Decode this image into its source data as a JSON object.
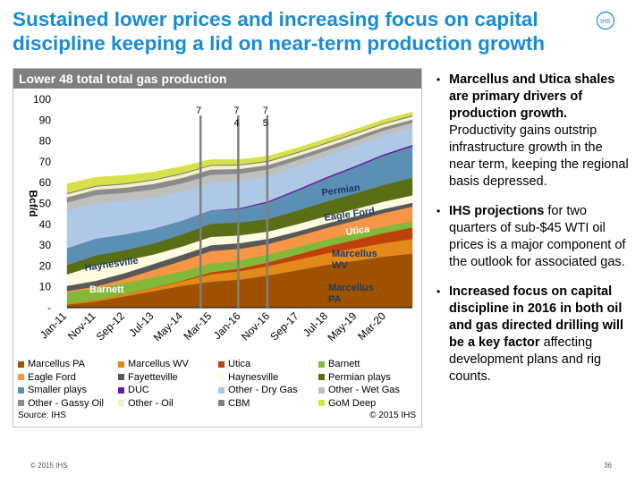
{
  "slide": {
    "title": "Sustained lower prices and increasing focus on capital discipline keeping a lid on near-term production growth",
    "logo_text": "IHS",
    "footer_copyright": "© 2015 IHS",
    "page_number": "36"
  },
  "bullets": [
    {
      "bold": "Marcellus and Utica shales are primary drivers of production growth.",
      "text": " Productivity gains outstrip infrastructure growth in the near term, keeping the regional basis depressed."
    },
    {
      "bold": "IHS projections",
      "text": " for two quarters of sub-$45 WTI oil prices is a major component of the outlook for associated gas."
    },
    {
      "bold": "Increased focus on capital discipline in 2016 in both oil and gas directed drilling will be a key factor",
      "text": " affecting development plans and rig counts."
    }
  ],
  "chart_data": {
    "type": "area",
    "stacked": true,
    "title": "Lower 48 total total gas production",
    "ylabel": "Bcf/d",
    "ylim": [
      0,
      100
    ],
    "yticks": [
      "-",
      "10",
      "20",
      "30",
      "40",
      "50",
      "60",
      "70",
      "80",
      "90",
      "100"
    ],
    "x_labels": [
      "Jan-11",
      "Nov-11",
      "Sep-12",
      "Jul-13",
      "May-14",
      "Mar-15",
      "Jan-16",
      "Nov-16",
      "Sep-17",
      "Jul-18",
      "May-19",
      "Mar-20"
    ],
    "x": [
      "Jan-11",
      "Nov-11",
      "Sep-12",
      "Jul-13",
      "May-14",
      "Mar-15",
      "Jan-16",
      "Nov-16",
      "Sep-17",
      "Jul-18",
      "May-19",
      "Mar-20",
      "Dec-20"
    ],
    "series": [
      {
        "name": "Marcellus PA",
        "color": "#9e5200",
        "values": [
          1.5,
          3,
          5.5,
          8,
          10.5,
          12.5,
          13.5,
          15.5,
          18,
          20.5,
          22.5,
          24.5,
          26
        ]
      },
      {
        "name": "Marcellus WV",
        "color": "#e2891a",
        "values": [
          0.5,
          0.7,
          1,
          1.5,
          2.2,
          3.5,
          4,
          4.5,
          5,
          5.5,
          6,
          6.5,
          7
        ]
      },
      {
        "name": "Utica",
        "color": "#c0400c",
        "values": [
          0,
          0,
          0,
          0.1,
          0.3,
          1,
          1.3,
          1.8,
          2.5,
          3.3,
          4,
          4.8,
          5.5
        ]
      },
      {
        "name": "Barnett",
        "color": "#83b838",
        "values": [
          5.5,
          5.5,
          5.3,
          5,
          4.5,
          4.2,
          4,
          3.8,
          3.6,
          3.4,
          3.2,
          3.1,
          3
        ]
      },
      {
        "name": "Eagle Ford",
        "color": "#f79646",
        "values": [
          0.5,
          1,
          2,
          3.5,
          5,
          6,
          5.5,
          5,
          5.2,
          5.5,
          6,
          6.5,
          7
        ]
      },
      {
        "name": "Fayetteville",
        "color": "#595959",
        "values": [
          2.5,
          2.7,
          2.8,
          2.9,
          2.9,
          2.8,
          2.7,
          2.5,
          2.3,
          2.2,
          2.1,
          2,
          1.9
        ]
      },
      {
        "name": "Haynesville",
        "color": "#fffbe0",
        "values": [
          5.5,
          7.5,
          6,
          4.5,
          4,
          4,
          3.7,
          3.5,
          3.5,
          3.5,
          3.5,
          3.5,
          3.5
        ]
      },
      {
        "name": "Permian plays",
        "color": "#5a6e15",
        "values": [
          4.5,
          4.7,
          5,
          5.3,
          5.8,
          6.3,
          6.2,
          6,
          6.5,
          7,
          7.5,
          8,
          8.5
        ]
      },
      {
        "name": "Smaller plays",
        "color": "#5b8fb3",
        "values": [
          8,
          8,
          7.5,
          7,
          6.5,
          6.5,
          6.5,
          8,
          9.5,
          11,
          12.5,
          14,
          15
        ]
      },
      {
        "name": "DUC",
        "color": "#6a1b9a",
        "values": [
          0,
          0,
          0,
          0,
          0,
          0,
          0.4,
          0.6,
          0.7,
          0.7,
          0.7,
          0.7,
          0.7
        ]
      },
      {
        "name": "Other - Dry Gas",
        "color": "#aec8e6",
        "values": [
          18,
          17,
          16,
          15,
          14,
          13,
          13,
          12,
          11,
          10,
          9.5,
          9,
          8.5
        ]
      },
      {
        "name": "Other - Wet Gas",
        "color": "#bfbfbf",
        "values": [
          4,
          4,
          4,
          4,
          4,
          4,
          3.5,
          3.3,
          3,
          2.8,
          2.6,
          2.4,
          2.2
        ]
      },
      {
        "name": "Other - Gassy Oil",
        "color": "#8c8c8c",
        "values": [
          2.5,
          2.5,
          2.5,
          2.6,
          2.6,
          2.5,
          2.3,
          2,
          1.9,
          1.8,
          1.7,
          1.6,
          1.5
        ]
      },
      {
        "name": "Other - Oil",
        "color": "#f4f0c9",
        "values": [
          1.5,
          1.5,
          1.6,
          1.7,
          1.8,
          1.8,
          1.7,
          1.6,
          1.5,
          1.5,
          1.5,
          1.5,
          1.5
        ]
      },
      {
        "name": "CBM",
        "color": "#7f7f7f",
        "values": [
          0.5,
          0.5,
          0.5,
          0.5,
          0.5,
          0.5,
          0.5,
          0.5,
          0.5,
          0.5,
          0.5,
          0.5,
          0.5
        ]
      },
      {
        "name": "GoM Deep",
        "color": "#d8e047",
        "values": [
          4.5,
          4,
          3.8,
          3.5,
          3.2,
          2.5,
          2.3,
          2.2,
          2,
          1.9,
          1.8,
          1.7,
          1.6
        ]
      }
    ],
    "markers": [
      {
        "label": "7",
        "x": "Nov-14"
      },
      {
        "label": "74",
        "x": "Dec-15"
      },
      {
        "label": "75",
        "x": "Oct-16"
      }
    ],
    "annotations": [
      {
        "text": "Barnett",
        "color": "#ffffff"
      },
      {
        "text": "Haynesville",
        "color": "#1f3864"
      },
      {
        "text": "Permian",
        "color": "#1f3864"
      },
      {
        "text": "Eagle Ford",
        "color": "#1f3864"
      },
      {
        "text": "Utica",
        "color": "#ffffff"
      },
      {
        "text": "Marcellus WV",
        "color": "#1f3864"
      },
      {
        "text": "Marcellus PA",
        "color": "#1f3864"
      }
    ],
    "source": "Source: IHS",
    "copyright": "© 2015 IHS"
  }
}
